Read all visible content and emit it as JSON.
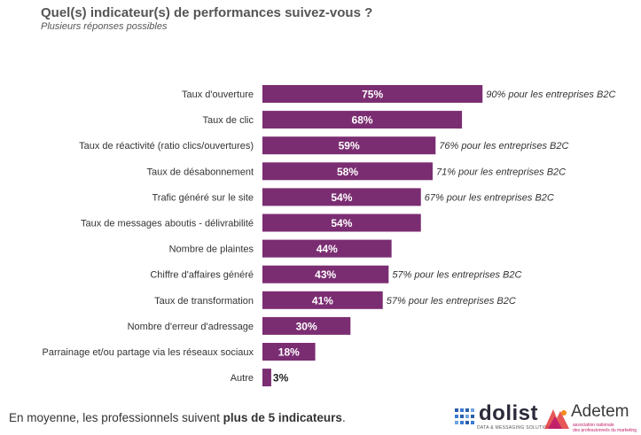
{
  "header": {
    "title": "Quel(s) indicateur(s) de performances suivez-vous ?",
    "subtitle": "Plusieurs réponses possibles"
  },
  "chart_data": {
    "type": "bar",
    "orientation": "horizontal",
    "categories": [
      "Taux d'ouverture",
      "Taux de clic",
      "Taux de réactivité (ratio clics/ouvertures)",
      "Taux de désabonnement",
      "Trafic généré sur le site",
      "Taux de messages aboutis - délivrabilité",
      "Nombre de plaintes",
      "Chiffre d'affaires généré",
      "Taux de transformation",
      "Nombre d'erreur d'adressage",
      "Parrainage et/ou partage via les réseaux sociaux",
      "Autre"
    ],
    "values": [
      75,
      68,
      59,
      58,
      54,
      54,
      44,
      43,
      41,
      30,
      18,
      3
    ],
    "data_labels": [
      "75%",
      "68%",
      "59%",
      "58%",
      "54%",
      "54%",
      "44%",
      "43%",
      "41%",
      "30%",
      "18%",
      "3%"
    ],
    "annotations": [
      "90% pour les entreprises B2C",
      "",
      "76% pour les entreprises B2C",
      "71% pour les entreprises B2C",
      "67% pour les entreprises B2C",
      "",
      "",
      "57% pour les entreprises B2C",
      "57% pour les entreprises B2C",
      "",
      "",
      ""
    ],
    "bar_color": "#7b2d72",
    "xlim": [
      0,
      100
    ],
    "grid": false,
    "legend": "none"
  },
  "footer": {
    "text_before": "En moyenne, les professionnels suivent ",
    "text_bold": "plus de 5 indicateurs",
    "text_after": "."
  },
  "logos": {
    "dolist_name": "dolist",
    "dolist_tagline": "DATA & MESSAGING SOLUTIONS",
    "adetem_name": "Adetem",
    "adetem_tagline_1": "association nationale",
    "adetem_tagline_2": "des professionnels du marketing"
  }
}
